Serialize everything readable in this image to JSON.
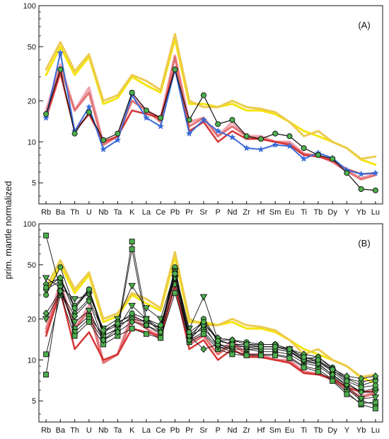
{
  "chart_data": {
    "type": "line",
    "ylabel": "prim. mantle normalized",
    "yscale": "log",
    "categories": [
      "Rb",
      "Ba",
      "Th",
      "U",
      "Nb",
      "Ta",
      "K",
      "La",
      "Ce",
      "Pb",
      "Pr",
      "Sr",
      "P",
      "Nd",
      "Zr",
      "Hf",
      "Sm",
      "Eu",
      "Ti",
      "Tb",
      "Dy",
      "Y",
      "Yb",
      "Lu"
    ],
    "yticks": [
      "5",
      "10",
      "20",
      "50",
      "100"
    ],
    "ytick_values": [
      5,
      10,
      20,
      50,
      100
    ],
    "colors": {
      "yellow": "#f4e400",
      "gold": "#ebc84a",
      "pink": "#f0a0b0",
      "red": "#d42c2c",
      "green": "#4cae4c",
      "blue": "#3a6bd8",
      "black": "#111111"
    },
    "panels": [
      {
        "label": "(A)",
        "ylim": [
          3.5,
          100
        ],
        "series": [
          {
            "values": [
              31,
              50,
              31,
              42,
              19,
              21,
              30,
              26,
              23,
              57,
              19,
              19,
              18,
              19,
              17,
              17,
              16,
              14,
              12,
              11,
              10,
              9,
              7.4,
              6.8
            ],
            "color": "#f4e400",
            "width": 3,
            "marker": "none"
          },
          {
            "values": [
              34,
              54,
              33,
              44,
              20,
              22,
              31,
              28,
              24,
              62,
              20,
              18,
              18,
              20,
              18,
              17.5,
              16.5,
              14,
              11,
              12,
              10,
              9,
              7.5,
              7.8
            ],
            "color": "#ebc84a",
            "width": 3,
            "marker": "none"
          },
          {
            "values": [
              17,
              37,
              17,
              25,
              9.7,
              11,
              22,
              17,
              15,
              43,
              14,
              15,
              11,
              14,
              11,
              11,
              10,
              10,
              8.2,
              7.9,
              7.1,
              6.1,
              5.4,
              5.8
            ],
            "color": "#f0a0b0",
            "width": 3.5,
            "marker": "none"
          },
          {
            "values": [
              16,
              35,
              17,
              23,
              9.5,
              11,
              20,
              17,
              14,
              42,
              13,
              15,
              11,
              13,
              11,
              10.5,
              10,
              9.7,
              8.1,
              7.9,
              7.2,
              6.1,
              5.3,
              5.7
            ],
            "color": "#e07070",
            "width": 3,
            "marker": "none"
          },
          {
            "values": [
              15,
              32,
              12,
              16,
              10,
              11,
              17,
              16,
              15,
              35,
              12,
              14,
              10,
              12,
              10.5,
              10.5,
              10,
              9.5,
              8,
              7.8,
              7.3,
              6.3,
              5.8,
              5.9
            ],
            "color": "#d42c2c",
            "width": 2.5,
            "marker": "none"
          },
          {
            "values": [
              15,
              45,
              12,
              18,
              8.8,
              10.3,
              22,
              15,
              13,
              34,
              11.5,
              14.5,
              12,
              10.8,
              9,
              8.8,
              9.5,
              9.3,
              7.5,
              8.3,
              7.6,
              6.2,
              5.8,
              5.9
            ],
            "color": "#3a6bd8",
            "width": 2,
            "marker": "star",
            "fill": "#3a6bd8"
          },
          {
            "values": [
              16,
              34,
              11.5,
              16.5,
              10.3,
              11.5,
              23,
              17,
              15,
              34,
              14.5,
              22,
              13.5,
              14.5,
              11,
              10.5,
              11.5,
              11,
              9,
              8,
              7.5,
              5.9,
              4.5,
              4.4
            ],
            "color": "#111111",
            "width": 1.2,
            "marker": "circle",
            "fill": "#4cae4c"
          }
        ]
      },
      {
        "label": "(B)",
        "ylim": [
          3.5,
          100
        ],
        "series": [
          {
            "values": [
              31,
              50,
              31,
              42,
              19,
              21,
              30,
              26,
              23,
              57,
              19,
              19,
              18,
              19,
              17,
              17,
              16,
              14,
              12,
              11,
              10,
              9,
              7.4,
              6.8
            ],
            "color": "#f4e400",
            "width": 3,
            "marker": "none"
          },
          {
            "values": [
              34,
              54,
              33,
              44,
              20,
              22,
              31,
              28,
              24,
              62,
              20,
              18,
              18,
              20,
              18,
              17.5,
              16.5,
              14,
              11,
              12,
              10,
              9,
              7.5,
              7.8
            ],
            "color": "#ebc84a",
            "width": 3,
            "marker": "none"
          },
          {
            "values": [
              17,
              37,
              17,
              25,
              9.7,
              11,
              22,
              17,
              15,
              43,
              14,
              15,
              11,
              14,
              11,
              11,
              10,
              10,
              8.2,
              7.9,
              7.1,
              6.1,
              5.4,
              5.8
            ],
            "color": "#f0a0b0",
            "width": 3.5,
            "marker": "none"
          },
          {
            "values": [
              16,
              35,
              17,
              23,
              9.5,
              11,
              20,
              17,
              14,
              42,
              13,
              15,
              11,
              13,
              11,
              10.5,
              10,
              9.7,
              8.1,
              7.9,
              7.2,
              6.1,
              5.3,
              5.7
            ],
            "color": "#e07070",
            "width": 3,
            "marker": "none"
          },
          {
            "values": [
              15,
              32,
              12,
              16,
              10,
              11,
              17,
              16,
              15,
              35,
              12,
              14,
              10,
              12,
              10.5,
              10.5,
              10,
              9.5,
              8,
              7.8,
              7.3,
              6.3,
              5.8,
              5.9
            ],
            "color": "#d42c2c",
            "width": 2.5,
            "marker": "none"
          },
          {
            "values": [
              82,
              33,
              17,
              21,
              15,
              17,
              74,
              20,
              16,
              42,
              15,
              17,
              13,
              12,
              12,
              11.5,
              11.5,
              11,
              9.5,
              9,
              7.6,
              6.2,
              5,
              4.7
            ],
            "color": "#111111",
            "width": 0.9,
            "marker": "square",
            "fill": "#4cae4c"
          },
          {
            "values": [
              7.8,
              36,
              16,
              20,
              14,
              16,
              65,
              18,
              15.5,
              36,
              14,
              16,
              12.5,
              11.5,
              11,
              11,
              11,
              10.5,
              9,
              8.5,
              7.2,
              5.8,
              4.7,
              4.4
            ],
            "color": "#111111",
            "width": 0.9,
            "marker": "square",
            "fill": "#4cae4c"
          },
          {
            "values": [
              11,
              30,
              15,
              19,
              13,
              15,
              17,
              15.5,
              14.5,
              31,
              13.5,
              15.5,
              12,
              11,
              10.8,
              10.8,
              10.8,
              10.3,
              8.8,
              8.2,
              7,
              5.6,
              4.8,
              4.9
            ],
            "color": "#111111",
            "width": 0.9,
            "marker": "square",
            "fill": "#4cae4c"
          },
          {
            "values": [
              40,
              34,
              28,
              30,
              17,
              20,
              35,
              24,
              20,
              45,
              17,
              29,
              14,
              13,
              13,
              12.5,
              12.5,
              12,
              10.5,
              9.7,
              8.2,
              6.8,
              5.8,
              5.8
            ],
            "color": "#111111",
            "width": 0.9,
            "marker": "triangle",
            "fill": "#4cae4c"
          },
          {
            "values": [
              20,
              31,
              19,
              23,
              14,
              17,
              25,
              20,
              17,
              40,
              14,
              18,
              12.5,
              12,
              12,
              12,
              12,
              11.5,
              9.8,
              9.3,
              7.8,
              6.4,
              5.2,
              5.3
            ],
            "color": "#111111",
            "width": 0.9,
            "marker": "triangle",
            "fill": "#4cae4c"
          },
          {
            "values": [
              30,
              48,
              24,
              32,
              16,
              19,
              21,
              19,
              17,
              48,
              15,
              19,
              14,
              14,
              13.5,
              13,
              13,
              12,
              10.2,
              10.5,
              8.8,
              7.3,
              6.9,
              7.2
            ],
            "color": "#111111",
            "width": 0.9,
            "marker": "circle",
            "fill": "#4cae4c"
          },
          {
            "values": [
              33,
              38,
              25,
              33,
              15,
              17,
              21,
              19,
              17,
              45,
              14,
              20,
              14,
              13,
              12.5,
              12.5,
              12.5,
              11.7,
              10,
              9.8,
              8.4,
              7.3,
              6.5,
              7
            ],
            "color": "#111111",
            "width": 0.9,
            "marker": "circle",
            "fill": "#4cae4c"
          },
          {
            "values": [
              36,
              40,
              22,
              28,
              16,
              18,
              20,
              19,
              17,
              40,
              14,
              18,
              14.5,
              14,
              13,
              13,
              13,
              12,
              11,
              10.5,
              8.6,
              7.6,
              7.3,
              7.6
            ],
            "color": "#111111",
            "width": 0.9,
            "marker": "diamond",
            "fill": "#4cae4c"
          },
          {
            "values": [
              22,
              32,
              21,
              27,
              14,
              16,
              19,
              18,
              16,
              44,
              15,
              12,
              13,
              12.5,
              12.5,
              12,
              12,
              11.5,
              10,
              9.4,
              7.8,
              6.6,
              5.8,
              6.2
            ],
            "color": "#111111",
            "width": 0.9,
            "marker": "diamond",
            "fill": "#4cae4c"
          },
          {
            "values": [
              34,
              40,
              24,
              33,
              16.5,
              18.5,
              22,
              20,
              18,
              43,
              16,
              19,
              13.8,
              13,
              13,
              12.5,
              12.5,
              12,
              10.5,
              10,
              8.5,
              7,
              6.3,
              6.5
            ],
            "color": "#111111",
            "width": 0.9,
            "marker": "circle",
            "fill": "#4cae4c"
          }
        ]
      }
    ]
  }
}
